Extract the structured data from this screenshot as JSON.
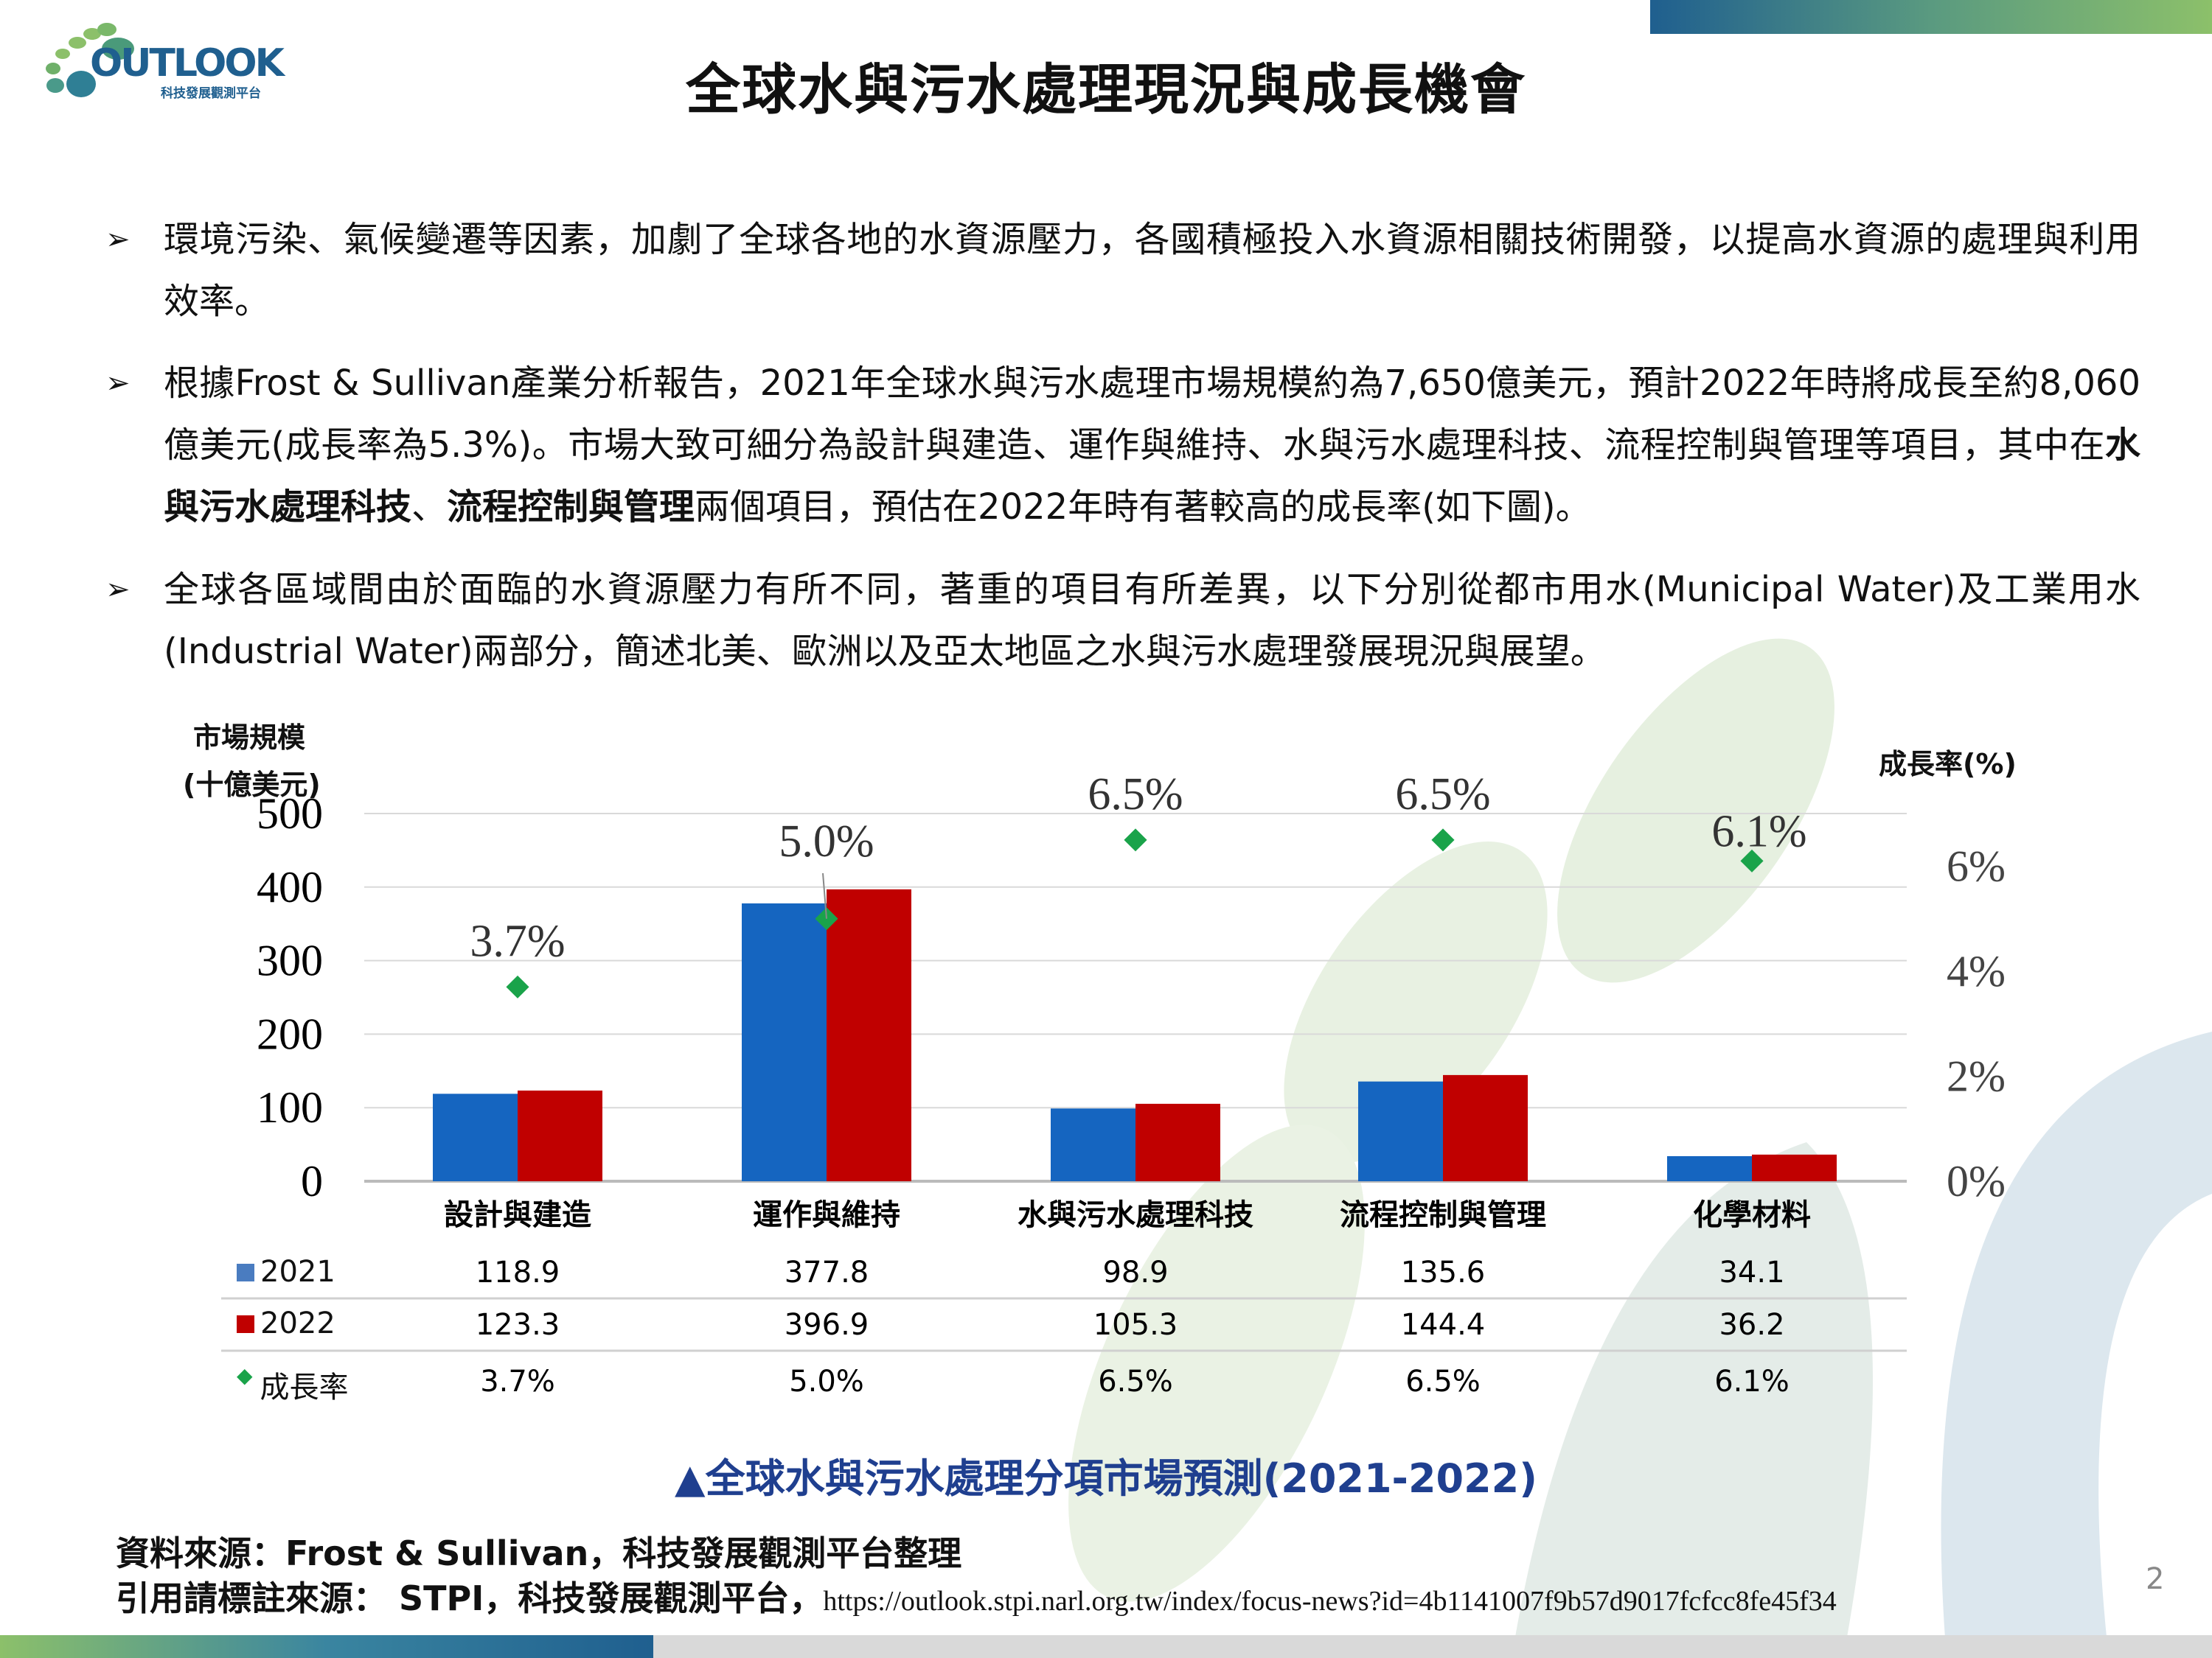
{
  "logo": {
    "text": "OUTLOOK",
    "subtitle": "科技發展觀測平台"
  },
  "title": "全球水與污水處理現況與成長機會",
  "bullets": [
    {
      "segments": [
        {
          "t": "環境污染、氣候變遷等因素，加劇了全球各地的水資源壓力，各國積極投入水資源相關技術開發，以提高水資源的處理與利用效率。",
          "b": false
        }
      ]
    },
    {
      "segments": [
        {
          "t": "根據Frost & Sullivan產業分析報告，2021年全球水與污水處理市場規模約為7,650億美元，預計2022年時將成長至約8,060億美元(成長率為5.3%)。市場大致可細分為設計與建造、運作與維持、水與污水處理科技、流程控制與管理等項目，其中在",
          "b": false
        },
        {
          "t": "水與污水處理科技",
          "b": true
        },
        {
          "t": "、",
          "b": false
        },
        {
          "t": "流程控制與管理",
          "b": true
        },
        {
          "t": "兩個項目，預估在2022年時有著較高的成長率(如下圖)。",
          "b": false
        }
      ]
    },
    {
      "segments": [
        {
          "t": "全球各區域間由於面臨的水資源壓力有所不同，著重的項目有所差異，以下分別從都市用水(Municipal Water)及工業用水(Industrial Water)兩部分，簡述北美、歐洲以及亞太地區之水與污水處理發展現況與展望。",
          "b": false
        }
      ]
    }
  ],
  "chart_data": {
    "type": "bar",
    "ylabel_left": [
      "市場規模",
      "(十億美元)"
    ],
    "ylabel_right": "成長率(%)",
    "ylim": [
      0,
      500
    ],
    "yticks": [
      "0",
      "100",
      "200",
      "300",
      "400",
      "500"
    ],
    "y2lim": [
      0,
      7
    ],
    "y2ticks": [
      "0%",
      "2%",
      "4%",
      "6%"
    ],
    "categories": [
      "設計與建造",
      "運作與維持",
      "水與污水處理科技",
      "流程控制與管理",
      "化學材料"
    ],
    "series": [
      {
        "name": "2021",
        "type": "bar",
        "color": "#1565c0",
        "values": [
          118.9,
          377.8,
          98.9,
          135.6,
          34.1
        ],
        "labels": [
          "118.9",
          "377.8",
          "98.9",
          "135.6",
          "34.1"
        ]
      },
      {
        "name": "2022",
        "type": "bar",
        "color": "#c00000",
        "values": [
          123.3,
          396.9,
          105.3,
          144.4,
          36.2
        ],
        "labels": [
          "123.3",
          "396.9",
          "105.3",
          "144.4",
          "36.2"
        ]
      },
      {
        "name": "成長率",
        "type": "marker",
        "axis": "right",
        "color": "#1aa34a",
        "values": [
          3.7,
          5.0,
          6.5,
          6.5,
          6.1
        ],
        "labels": [
          "3.7%",
          "5.0%",
          "6.5%",
          "6.5%",
          "6.1%"
        ]
      }
    ],
    "caption": "▲全球水與污水處理分項市場預測(2021-2022)"
  },
  "sources": {
    "line1": "資料來源：Frost & Sullivan，科技發展觀測平台整理",
    "line2": "引用請標註來源： STPI，科技發展觀測平台，",
    "url": "https://outlook.stpi.narl.org.tw/index/focus-news?id=4b1141007f9b57d9017fcfcc8fe45f34"
  },
  "page_number": "2"
}
